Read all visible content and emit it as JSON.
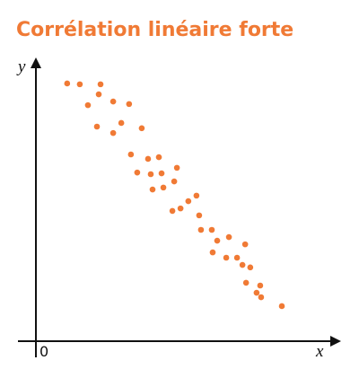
{
  "chart_data": {
    "type": "scatter",
    "title": "Corrélation linéaire forte",
    "x_label": "x",
    "y_label": "y",
    "color": "#f07a35",
    "xlim": [
      0,
      100
    ],
    "ylim": [
      0,
      100
    ],
    "xticks": [
      0
    ],
    "series": [
      {
        "x": [
          10.4,
          14.6,
          21.5,
          20.9,
          17.3,
          25.7,
          31.0,
          20.3,
          28.4,
          25.7,
          35.2,
          31.6,
          37.3,
          40.9,
          33.7,
          38.2,
          41.8,
          46.9,
          46.0,
          38.8,
          42.4,
          50.7,
          53.4,
          48.1,
          45.4,
          54.3,
          54.9,
          58.5,
          64.2,
          69.6,
          60.3,
          58.8,
          63.3,
          66.9,
          68.7,
          71.3,
          69.9,
          74.6,
          73.4,
          74.9,
          81.8
        ],
        "values": [
          92.6,
          92.3,
          92.3,
          88.7,
          84.8,
          86.1,
          85.2,
          77.1,
          78.4,
          74.8,
          76.5,
          67.1,
          65.5,
          66.1,
          60.6,
          60.0,
          60.3,
          62.3,
          57.4,
          54.5,
          55.2,
          50.3,
          52.3,
          47.7,
          46.8,
          45.2,
          40.0,
          40.0,
          37.4,
          34.8,
          36.1,
          31.9,
          30.0,
          30.0,
          27.4,
          26.5,
          21.0,
          20.0,
          17.4,
          15.8,
          12.6
        ]
      }
    ]
  }
}
